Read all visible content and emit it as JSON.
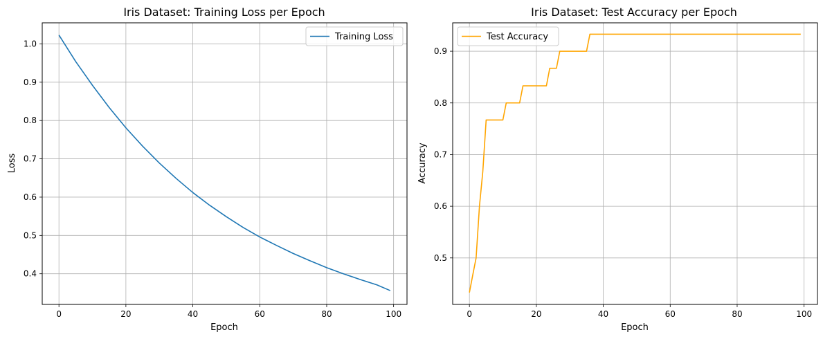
{
  "chart_data": [
    {
      "type": "line",
      "title": "Iris Dataset: Training Loss per Epoch",
      "xlabel": "Epoch",
      "ylabel": "Loss",
      "xlim": [
        -5,
        104
      ],
      "ylim": [
        0.32,
        1.055
      ],
      "xticks": [
        0,
        20,
        40,
        60,
        80,
        100
      ],
      "xtick_labels": [
        "0",
        "20",
        "40",
        "60",
        "80",
        "100"
      ],
      "yticks": [
        0.4,
        0.5,
        0.6,
        0.7,
        0.8,
        0.9,
        1.0
      ],
      "ytick_labels": [
        "0.4",
        "0.5",
        "0.6",
        "0.7",
        "0.8",
        "0.9",
        "1.0"
      ],
      "grid": true,
      "legend_position": "upper right",
      "series": [
        {
          "name": "Training Loss",
          "color": "#1f77b4",
          "x": [
            0,
            5,
            10,
            15,
            20,
            25,
            30,
            35,
            40,
            45,
            50,
            55,
            60,
            65,
            70,
            75,
            80,
            85,
            90,
            95,
            99
          ],
          "y": [
            1.023,
            0.954,
            0.892,
            0.834,
            0.781,
            0.733,
            0.689,
            0.649,
            0.612,
            0.579,
            0.549,
            0.521,
            0.496,
            0.474,
            0.453,
            0.434,
            0.416,
            0.4,
            0.385,
            0.371,
            0.356
          ]
        }
      ]
    },
    {
      "type": "line",
      "title": "Iris Dataset: Test Accuracy per Epoch",
      "xlabel": "Epoch",
      "ylabel": "Accuracy",
      "xlim": [
        -5,
        104
      ],
      "ylim": [
        0.41,
        0.955
      ],
      "xticks": [
        0,
        20,
        40,
        60,
        80,
        100
      ],
      "xtick_labels": [
        "0",
        "20",
        "40",
        "60",
        "80",
        "100"
      ],
      "yticks": [
        0.5,
        0.6,
        0.7,
        0.8,
        0.9
      ],
      "ytick_labels": [
        "0.5",
        "0.6",
        "0.7",
        "0.8",
        "0.9"
      ],
      "grid": true,
      "legend_position": "upper left",
      "series": [
        {
          "name": "Test Accuracy",
          "color": "#ffa500",
          "x": [
            0,
            1,
            2,
            3,
            4,
            5,
            6,
            7,
            8,
            9,
            10,
            11,
            12,
            13,
            14,
            15,
            16,
            17,
            18,
            19,
            20,
            21,
            22,
            23,
            24,
            25,
            26,
            27,
            28,
            29,
            30,
            31,
            32,
            33,
            34,
            35,
            36,
            37,
            40,
            50,
            60,
            70,
            80,
            90,
            99
          ],
          "y": [
            0.433,
            0.467,
            0.5,
            0.6,
            0.667,
            0.767,
            0.767,
            0.767,
            0.767,
            0.767,
            0.767,
            0.8,
            0.8,
            0.8,
            0.8,
            0.8,
            0.833,
            0.833,
            0.833,
            0.833,
            0.833,
            0.833,
            0.833,
            0.833,
            0.867,
            0.867,
            0.867,
            0.9,
            0.9,
            0.9,
            0.9,
            0.9,
            0.9,
            0.9,
            0.9,
            0.9,
            0.933,
            0.933,
            0.933,
            0.933,
            0.933,
            0.933,
            0.933,
            0.933,
            0.933
          ]
        }
      ]
    }
  ]
}
